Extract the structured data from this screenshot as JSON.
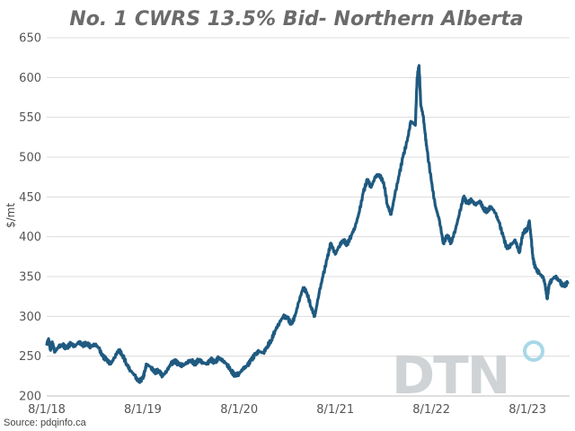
{
  "chart_data": {
    "type": "line",
    "title": "No. 1 CWRS 13.5% Bid- Northern Alberta",
    "ylabel": "$/mt",
    "xlabel": "",
    "ylim": [
      200,
      650
    ],
    "yticks": [
      200,
      250,
      300,
      350,
      400,
      450,
      500,
      550,
      600,
      650
    ],
    "xtick_labels": [
      "8/1/18",
      "8/1/19",
      "8/1/20",
      "8/1/21",
      "8/1/22",
      "8/1/23"
    ],
    "grid": "horizontal",
    "series": [
      {
        "color": "#1f5a80",
        "points": [
          [
            "2018-08-01",
            265
          ],
          [
            "2018-08-08",
            272
          ],
          [
            "2018-08-15",
            258
          ],
          [
            "2018-08-22",
            268
          ],
          [
            "2018-09-01",
            255
          ],
          [
            "2018-09-15",
            262
          ],
          [
            "2018-10-01",
            264
          ],
          [
            "2018-10-15",
            260
          ],
          [
            "2018-11-01",
            266
          ],
          [
            "2018-11-15",
            262
          ],
          [
            "2018-12-01",
            268
          ],
          [
            "2018-12-15",
            264
          ],
          [
            "2019-01-01",
            266
          ],
          [
            "2019-01-15",
            262
          ],
          [
            "2019-02-01",
            265
          ],
          [
            "2019-02-15",
            260
          ],
          [
            "2019-03-01",
            250
          ],
          [
            "2019-03-15",
            246
          ],
          [
            "2019-04-01",
            240
          ],
          [
            "2019-04-15",
            248
          ],
          [
            "2019-05-01",
            258
          ],
          [
            "2019-05-15",
            252
          ],
          [
            "2019-06-01",
            240
          ],
          [
            "2019-06-15",
            232
          ],
          [
            "2019-07-01",
            226
          ],
          [
            "2019-07-15",
            218
          ],
          [
            "2019-08-01",
            222
          ],
          [
            "2019-08-08",
            230
          ],
          [
            "2019-08-15",
            240
          ],
          [
            "2019-09-01",
            236
          ],
          [
            "2019-09-15",
            230
          ],
          [
            "2019-10-01",
            232
          ],
          [
            "2019-10-15",
            225
          ],
          [
            "2019-11-01",
            232
          ],
          [
            "2019-11-15",
            240
          ],
          [
            "2019-12-01",
            244
          ],
          [
            "2019-12-15",
            240
          ],
          [
            "2020-01-01",
            238
          ],
          [
            "2020-01-15",
            242
          ],
          [
            "2020-02-01",
            245
          ],
          [
            "2020-02-15",
            240
          ],
          [
            "2020-03-01",
            246
          ],
          [
            "2020-03-15",
            242
          ],
          [
            "2020-04-01",
            240
          ],
          [
            "2020-04-15",
            246
          ],
          [
            "2020-05-01",
            242
          ],
          [
            "2020-05-15",
            248
          ],
          [
            "2020-06-01",
            244
          ],
          [
            "2020-06-15",
            240
          ],
          [
            "2020-07-01",
            232
          ],
          [
            "2020-07-15",
            226
          ],
          [
            "2020-08-01",
            228
          ],
          [
            "2020-08-15",
            234
          ],
          [
            "2020-09-01",
            238
          ],
          [
            "2020-09-15",
            245
          ],
          [
            "2020-10-01",
            252
          ],
          [
            "2020-10-15",
            256
          ],
          [
            "2020-11-01",
            254
          ],
          [
            "2020-11-15",
            262
          ],
          [
            "2020-12-01",
            270
          ],
          [
            "2020-12-15",
            282
          ],
          [
            "2021-01-01",
            292
          ],
          [
            "2021-01-15",
            300
          ],
          [
            "2021-02-01",
            298
          ],
          [
            "2021-02-15",
            290
          ],
          [
            "2021-03-01",
            300
          ],
          [
            "2021-03-15",
            318
          ],
          [
            "2021-04-01",
            336
          ],
          [
            "2021-04-15",
            330
          ],
          [
            "2021-05-01",
            312
          ],
          [
            "2021-05-15",
            300
          ],
          [
            "2021-06-01",
            330
          ],
          [
            "2021-06-15",
            350
          ],
          [
            "2021-07-01",
            372
          ],
          [
            "2021-07-15",
            392
          ],
          [
            "2021-08-01",
            378
          ],
          [
            "2021-08-15",
            388
          ],
          [
            "2021-09-01",
            396
          ],
          [
            "2021-09-15",
            390
          ],
          [
            "2021-10-01",
            402
          ],
          [
            "2021-10-15",
            412
          ],
          [
            "2021-11-01",
            432
          ],
          [
            "2021-11-15",
            455
          ],
          [
            "2021-12-01",
            472
          ],
          [
            "2021-12-15",
            462
          ],
          [
            "2022-01-01",
            476
          ],
          [
            "2022-01-15",
            478
          ],
          [
            "2022-02-01",
            468
          ],
          [
            "2022-02-15",
            440
          ],
          [
            "2022-03-01",
            428
          ],
          [
            "2022-03-15",
            452
          ],
          [
            "2022-04-01",
            478
          ],
          [
            "2022-04-15",
            500
          ],
          [
            "2022-05-01",
            520
          ],
          [
            "2022-05-15",
            545
          ],
          [
            "2022-06-01",
            540
          ],
          [
            "2022-06-08",
            600
          ],
          [
            "2022-06-15",
            615
          ],
          [
            "2022-06-22",
            565
          ],
          [
            "2022-07-01",
            552
          ],
          [
            "2022-07-08",
            530
          ],
          [
            "2022-07-15",
            510
          ],
          [
            "2022-08-01",
            470
          ],
          [
            "2022-08-15",
            440
          ],
          [
            "2022-09-01",
            420
          ],
          [
            "2022-09-15",
            392
          ],
          [
            "2022-10-01",
            402
          ],
          [
            "2022-10-15",
            392
          ],
          [
            "2022-11-01",
            410
          ],
          [
            "2022-11-15",
            428
          ],
          [
            "2022-12-01",
            450
          ],
          [
            "2022-12-15",
            442
          ],
          [
            "2023-01-01",
            446
          ],
          [
            "2023-01-15",
            440
          ],
          [
            "2023-02-01",
            445
          ],
          [
            "2023-02-15",
            435
          ],
          [
            "2023-03-01",
            432
          ],
          [
            "2023-03-15",
            438
          ],
          [
            "2023-04-01",
            430
          ],
          [
            "2023-04-15",
            418
          ],
          [
            "2023-05-01",
            400
          ],
          [
            "2023-05-15",
            385
          ],
          [
            "2023-06-01",
            390
          ],
          [
            "2023-06-15",
            396
          ],
          [
            "2023-07-01",
            380
          ],
          [
            "2023-07-15",
            405
          ],
          [
            "2023-08-01",
            410
          ],
          [
            "2023-08-08",
            420
          ],
          [
            "2023-08-15",
            398
          ],
          [
            "2023-08-22",
            372
          ],
          [
            "2023-09-01",
            360
          ],
          [
            "2023-09-15",
            354
          ],
          [
            "2023-10-01",
            348
          ],
          [
            "2023-10-08",
            338
          ],
          [
            "2023-10-15",
            322
          ],
          [
            "2023-10-22",
            340
          ],
          [
            "2023-11-01",
            346
          ],
          [
            "2023-11-15",
            350
          ],
          [
            "2023-12-01",
            344
          ],
          [
            "2023-12-15",
            338
          ],
          [
            "2024-01-01",
            342
          ]
        ]
      }
    ]
  },
  "source": "Source: pdqinfo.ca",
  "logo": {
    "text": "DTN",
    "dot_color": "#a8d8e8"
  }
}
